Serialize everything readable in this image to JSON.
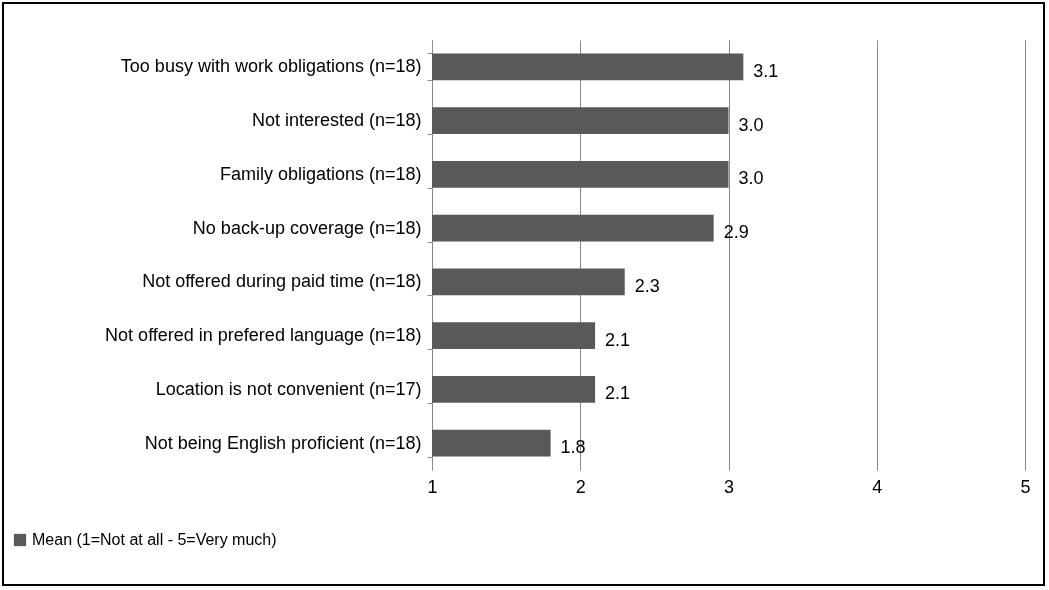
{
  "chart_data": {
    "type": "bar",
    "orientation": "horizontal",
    "categories": [
      "Too busy with work obligations (n=18)",
      "Not interested (n=18)",
      "Family obligations (n=18)",
      "No back-up coverage (n=18)",
      "Not offered during paid time (n=18)",
      "Not offered in prefered language (n=18)",
      "Location is not convenient (n=17)",
      "Not being English proficient (n=18)"
    ],
    "series": [
      {
        "name": "Mean (1=Not at all - 5=Very much)",
        "color": "#595959",
        "values": [
          3.1,
          3.0,
          3.0,
          2.9,
          2.3,
          2.1,
          2.1,
          1.8
        ],
        "value_labels": [
          "3.1",
          "3.0",
          "3.0",
          "2.9",
          "2.3",
          "2.1",
          "2.1",
          "1.8"
        ]
      }
    ],
    "xlim": [
      1,
      5
    ],
    "xticks": [
      1,
      2,
      3,
      4,
      5
    ],
    "grid": "x",
    "legend": "bottom left"
  }
}
